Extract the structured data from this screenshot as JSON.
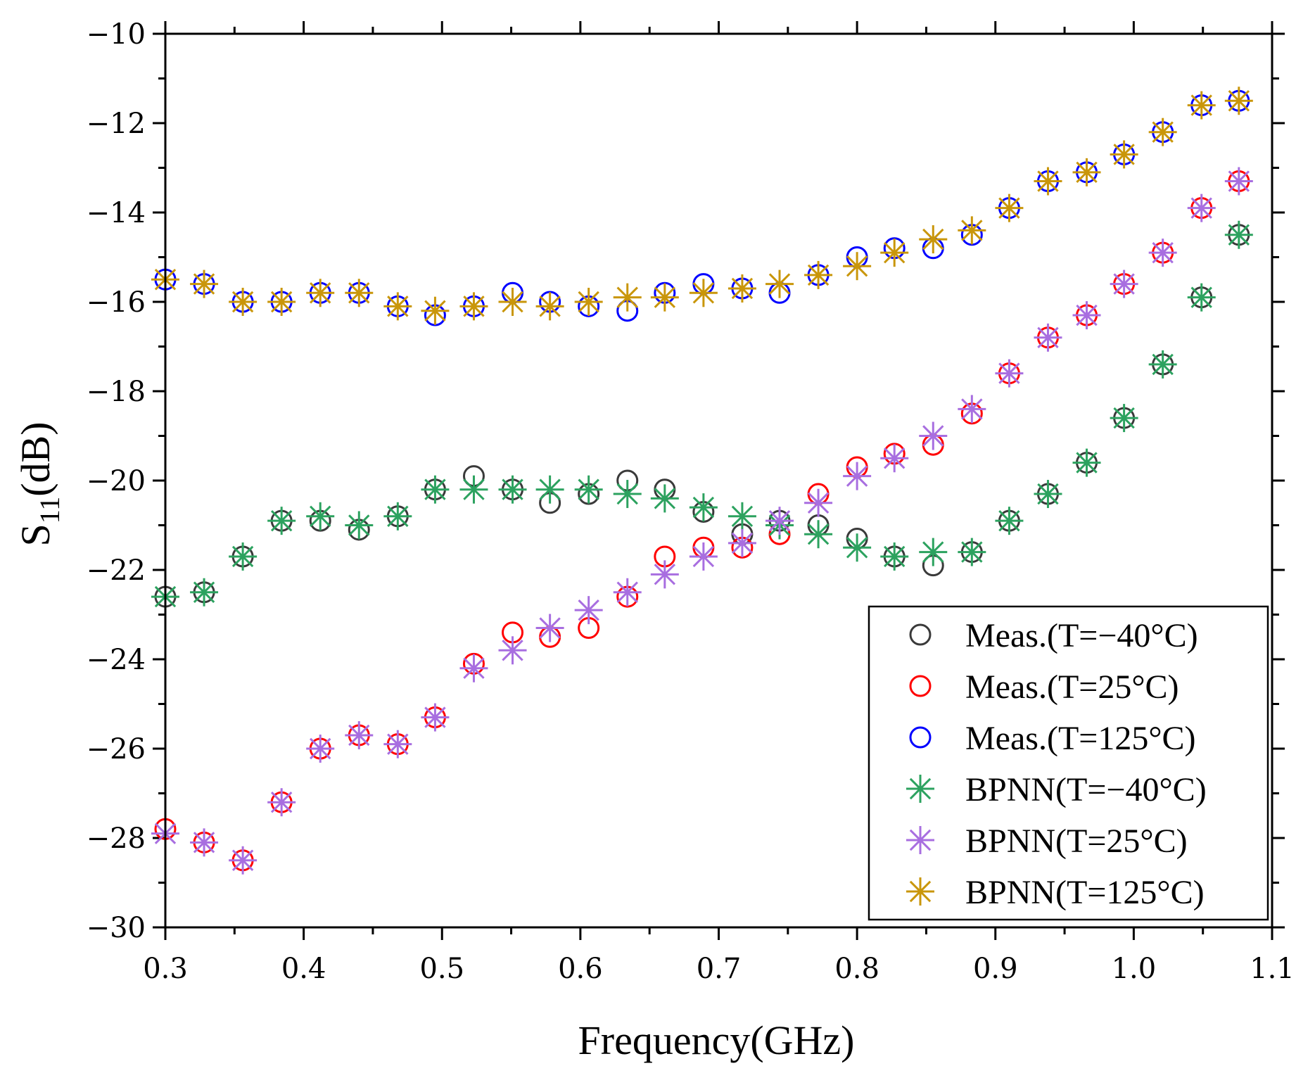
{
  "chart_data": {
    "type": "scatter",
    "title": "",
    "xlabel": "Frequency(GHz)",
    "ylabel_main": "S",
    "ylabel_sub": "11",
    "ylabel_unit": "(dB)",
    "xlim": [
      0.3,
      1.1
    ],
    "ylim": [
      -30,
      -10
    ],
    "xticks": [
      0.3,
      0.4,
      0.5,
      0.6,
      0.7,
      0.8,
      0.9,
      1.0,
      1.1
    ],
    "xtick_labels": [
      "0.3",
      "0.4",
      "0.5",
      "0.6",
      "0.7",
      "0.8",
      "0.9",
      "1.0",
      "1.1"
    ],
    "yticks": [
      -30,
      -28,
      -26,
      -24,
      -22,
      -20,
      -18,
      -16,
      -14,
      -12,
      -10
    ],
    "ytick_labels": [
      "−30",
      "−28",
      "−26",
      "−24",
      "−22",
      "−20",
      "−18",
      "−16",
      "−14",
      "−12",
      "−10"
    ],
    "legend_position": "bottom-right",
    "x": [
      0.3,
      0.328,
      0.356,
      0.384,
      0.412,
      0.44,
      0.468,
      0.495,
      0.523,
      0.551,
      0.578,
      0.606,
      0.634,
      0.661,
      0.689,
      0.717,
      0.744,
      0.772,
      0.8,
      0.827,
      0.855,
      0.883,
      0.91,
      0.938,
      0.966,
      0.993,
      1.021,
      1.049,
      1.076
    ],
    "series": [
      {
        "name": "Meas.(T=−40°C)",
        "marker": "circle",
        "color": "#3a3a3a",
        "values": [
          -22.6,
          -22.5,
          -21.7,
          -20.9,
          -20.9,
          -21.1,
          -20.8,
          -20.2,
          -19.9,
          -20.2,
          -20.5,
          -20.3,
          -20.0,
          -20.2,
          -20.7,
          -21.2,
          -20.9,
          -21.0,
          -21.3,
          -21.7,
          -21.9,
          -21.6,
          -20.9,
          -20.3,
          -19.6,
          -18.6,
          -17.4,
          -15.9,
          -14.5
        ]
      },
      {
        "name": "Meas.(T=25°C)",
        "marker": "circle",
        "color": "#ff0000",
        "values": [
          -27.8,
          -28.1,
          -28.5,
          -27.2,
          -26.0,
          -25.7,
          -25.9,
          -25.3,
          -24.1,
          -23.4,
          -23.5,
          -23.3,
          -22.6,
          -21.7,
          -21.5,
          -21.5,
          -21.2,
          -20.3,
          -19.7,
          -19.4,
          -19.2,
          -18.5,
          -17.6,
          -16.8,
          -16.3,
          -15.6,
          -14.9,
          -13.9,
          -13.3
        ]
      },
      {
        "name": "Meas.(T=125°C)",
        "marker": "circle",
        "color": "#0000ff",
        "values": [
          -15.5,
          -15.6,
          -16.0,
          -16.0,
          -15.8,
          -15.8,
          -16.1,
          -16.3,
          -16.1,
          -15.8,
          -16.0,
          -16.1,
          -16.2,
          -15.8,
          -15.6,
          -15.7,
          -15.8,
          -15.4,
          -15.0,
          -14.8,
          -14.8,
          -14.5,
          -13.9,
          -13.3,
          -13.1,
          -12.7,
          -12.2,
          -11.6,
          -11.5
        ]
      },
      {
        "name": "BPNN(T=−40°C)",
        "marker": "star",
        "color": "#2ca25f",
        "values": [
          -22.6,
          -22.5,
          -21.7,
          -20.9,
          -20.8,
          -21.0,
          -20.8,
          -20.2,
          -20.2,
          -20.2,
          -20.2,
          -20.2,
          -20.3,
          -20.4,
          -20.6,
          -20.8,
          -21.0,
          -21.2,
          -21.5,
          -21.7,
          -21.6,
          -21.6,
          -20.9,
          -20.3,
          -19.6,
          -18.6,
          -17.4,
          -15.9,
          -14.5
        ]
      },
      {
        "name": "BPNN(T=25°C)",
        "marker": "star",
        "color": "#a86ee0",
        "values": [
          -27.9,
          -28.1,
          -28.5,
          -27.2,
          -26.0,
          -25.7,
          -25.9,
          -25.3,
          -24.2,
          -23.8,
          -23.3,
          -22.9,
          -22.5,
          -22.1,
          -21.7,
          -21.4,
          -20.9,
          -20.5,
          -19.9,
          -19.5,
          -19.0,
          -18.4,
          -17.6,
          -16.8,
          -16.3,
          -15.6,
          -14.9,
          -13.9,
          -13.3
        ]
      },
      {
        "name": "BPNN(T=125°C)",
        "marker": "star",
        "color": "#c9960a",
        "values": [
          -15.5,
          -15.6,
          -16.0,
          -16.0,
          -15.8,
          -15.8,
          -16.1,
          -16.2,
          -16.1,
          -16.0,
          -16.1,
          -16.0,
          -15.9,
          -15.9,
          -15.8,
          -15.7,
          -15.6,
          -15.4,
          -15.2,
          -14.9,
          -14.6,
          -14.4,
          -13.9,
          -13.3,
          -13.1,
          -12.7,
          -12.2,
          -11.6,
          -11.5
        ]
      }
    ]
  }
}
